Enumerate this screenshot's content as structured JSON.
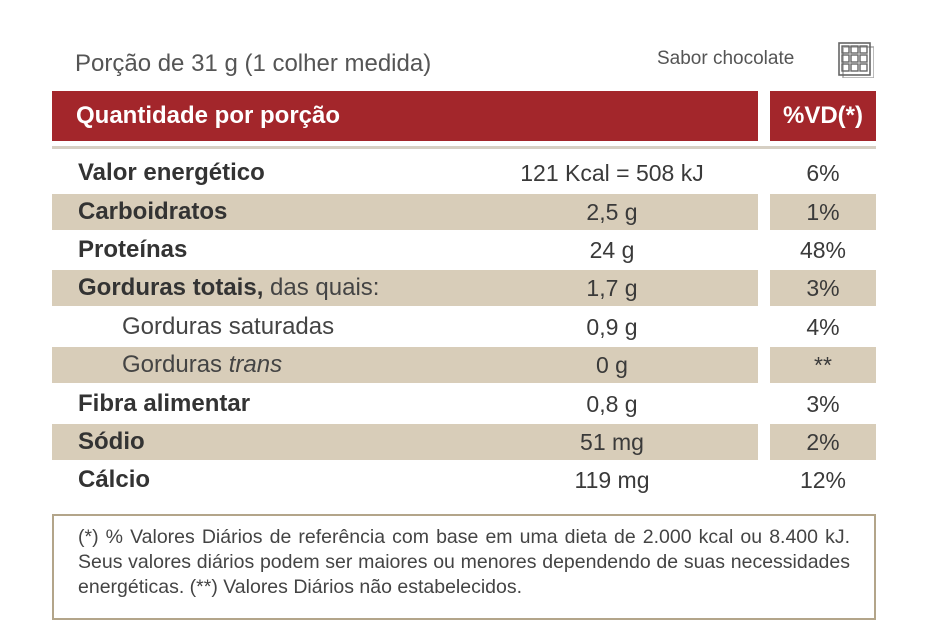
{
  "portion": "Porção de 31 g (1 colher medida)",
  "flavor": "Sabor chocolate",
  "flavor_icon": "chocolate-bar-icon",
  "colors": {
    "header": "#a3262b",
    "shade": "#d8cdb9",
    "border": "#b3a58a"
  },
  "header": {
    "quantity": "Quantidade por porção",
    "vd": "%VD(*)"
  },
  "rows": [
    {
      "label": "Valor energético",
      "amount": "121 Kcal = 508 kJ",
      "vd": "6%"
    },
    {
      "label": "Carboidratos",
      "amount": "2,5 g",
      "vd": "1%"
    },
    {
      "label": "Proteínas",
      "amount": "24 g",
      "vd": "48%"
    },
    {
      "label": "Gorduras totais,",
      "label_suffix": " das quais:",
      "amount": "1,7 g",
      "vd": "3%"
    },
    {
      "label": "Gorduras saturadas",
      "amount": "0,9 g",
      "vd": "4%"
    },
    {
      "label": "Gorduras ",
      "label_italic": "trans",
      "amount": "0 g",
      "vd": "**"
    },
    {
      "label": "Fibra alimentar",
      "amount": "0,8 g",
      "vd": "3%"
    },
    {
      "label": "Sódio",
      "amount": "51 mg",
      "vd": "2%"
    },
    {
      "label": "Cálcio",
      "amount": "119 mg",
      "vd": "12%"
    }
  ],
  "footnote": "(*) % Valores Diários de referência com base em uma dieta de 2.000 kcal ou 8.400 kJ. Seus valores diários podem ser maiores ou menores dependendo de suas necessidades energéticas. (**) Valores Diários não estabelecidos."
}
